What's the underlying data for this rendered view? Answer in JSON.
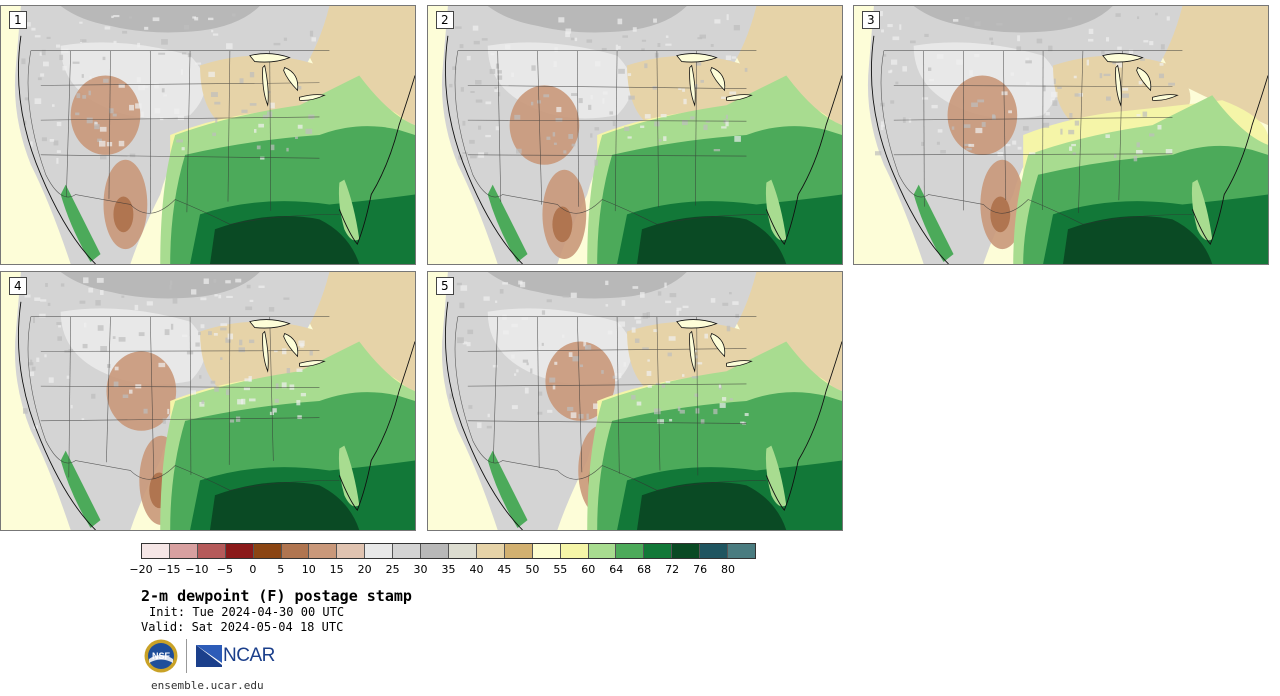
{
  "stamps": [
    {
      "label": "1",
      "variant": 0
    },
    {
      "label": "2",
      "variant": 1
    },
    {
      "label": "3",
      "variant": 2
    },
    {
      "label": "4",
      "variant": 3
    },
    {
      "label": "5",
      "variant": 4
    }
  ],
  "colorbar": {
    "colors": [
      "#f5e6e6",
      "#d8a0a0",
      "#b55a5a",
      "#8b1a1a",
      "#8b4513",
      "#b07550",
      "#c9987a",
      "#e0c3b0",
      "#e8e8e8",
      "#d4d4d4",
      "#b8b8b8",
      "#dcdcd0",
      "#e6d3a8",
      "#d2b070",
      "#fdfdd0",
      "#f5f5a8",
      "#a8dc90",
      "#4caa5a",
      "#127838",
      "#0a4a24",
      "#1f5560",
      "#4a7c80"
    ],
    "ticks": [
      "−20",
      "−15",
      "−10",
      "−5",
      "0",
      "5",
      "10",
      "15",
      "20",
      "25",
      "30",
      "35",
      "40",
      "45",
      "50",
      "55",
      "60",
      "64",
      "68",
      "72",
      "76",
      "80"
    ]
  },
  "title": "2-m dewpoint (F) postage stamp",
  "init_text": "Init: Tue 2024-04-30 00 UTC",
  "valid_text": "Valid: Sat 2024-05-04 18 UTC",
  "logos": {
    "nsf": "NSF",
    "ncar": "NCAR"
  },
  "site": "ensemble.ucar.edu"
}
